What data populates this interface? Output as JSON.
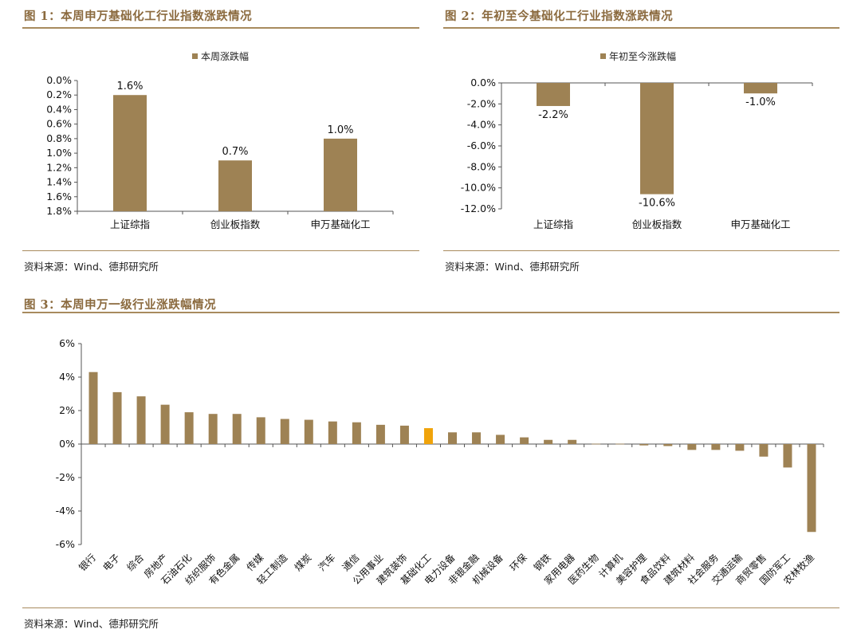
{
  "colors": {
    "bar": "#9e8254",
    "highlight": "#f0a30a",
    "accent": "#a88b5e",
    "title": "#8b6a3e"
  },
  "fig1": {
    "title": "图 1：本周申万基础化工行业指数涨跌情况",
    "source": "资料来源：Wind、德邦研究所"
  },
  "fig2": {
    "title": "图 2：年初至今基础化工行业指数涨跌情况",
    "source": "资料来源：Wind、德邦研究所"
  },
  "fig3": {
    "title": "图 3：本周申万一级行业涨跌幅情况",
    "source": "资料来源：Wind、德邦研究所"
  },
  "chart_data": [
    {
      "type": "bar",
      "legend": "本周涨跌幅",
      "legend_position": "top-center",
      "categories": [
        "上证综指",
        "创业板指数",
        "申万基础化工"
      ],
      "values": [
        1.6,
        0.7,
        1.0
      ],
      "data_labels": [
        "1.6%",
        "0.7%",
        "1.0%"
      ],
      "ylim": [
        0,
        1.8
      ],
      "yticks": [
        "0.0%",
        "0.2%",
        "0.4%",
        "0.6%",
        "0.8%",
        "1.0%",
        "1.2%",
        "1.4%",
        "1.6%",
        "1.8%"
      ],
      "grid": false
    },
    {
      "type": "bar",
      "legend": "年初至今涨跌幅",
      "legend_position": "top-center",
      "categories": [
        "上证综指",
        "创业板指数",
        "申万基础化工"
      ],
      "values": [
        -2.2,
        -10.6,
        -1.0
      ],
      "data_labels": [
        "-2.2%",
        "-10.6%",
        "-1.0%"
      ],
      "ylim": [
        -12,
        0
      ],
      "yticks": [
        "0.0%",
        "-2.0%",
        "-4.0%",
        "-6.0%",
        "-8.0%",
        "-10.0%",
        "-12.0%"
      ],
      "grid": false
    },
    {
      "type": "bar",
      "categories": [
        "银行",
        "电子",
        "综合",
        "房地产",
        "石油石化",
        "纺织服饰",
        "有色金属",
        "传媒",
        "轻工制造",
        "煤炭",
        "汽车",
        "通信",
        "公用事业",
        "建筑装饰",
        "基础化工",
        "电力设备",
        "非银金融",
        "机械设备",
        "环保",
        "钢铁",
        "家用电器",
        "医药生物",
        "计算机",
        "美容护理",
        "食品饮料",
        "建筑材料",
        "社会服务",
        "交通运输",
        "商贸零售",
        "国防军工",
        "农林牧渔"
      ],
      "values": [
        4.3,
        3.1,
        2.85,
        2.35,
        1.9,
        1.8,
        1.8,
        1.6,
        1.5,
        1.45,
        1.35,
        1.3,
        1.15,
        1.1,
        0.95,
        0.7,
        0.7,
        0.55,
        0.4,
        0.25,
        0.25,
        0.02,
        0.02,
        -0.08,
        -0.12,
        -0.35,
        -0.35,
        -0.4,
        -0.75,
        -1.4,
        -5.25
      ],
      "highlight_category": "基础化工",
      "ylim": [
        -6,
        6
      ],
      "yticks": [
        "6%",
        "4%",
        "2%",
        "0%",
        "-2%",
        "-4%",
        "-6%"
      ],
      "grid": false
    }
  ]
}
